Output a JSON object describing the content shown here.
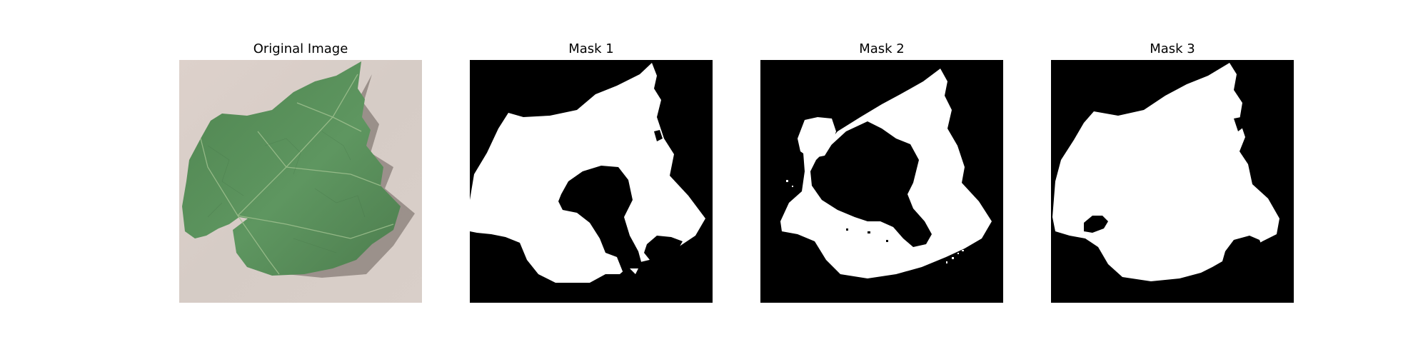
{
  "figure": {
    "panels": [
      {
        "title": "Original Image"
      },
      {
        "title": "Mask 1"
      },
      {
        "title": "Mask 2"
      },
      {
        "title": "Mask 3"
      }
    ]
  },
  "colors": {
    "background": "#ffffff",
    "mask_foreground": "#ffffff",
    "mask_background": "#000000",
    "leaf_green": "#5c8f5a",
    "backdrop": "#d9cfc8"
  }
}
